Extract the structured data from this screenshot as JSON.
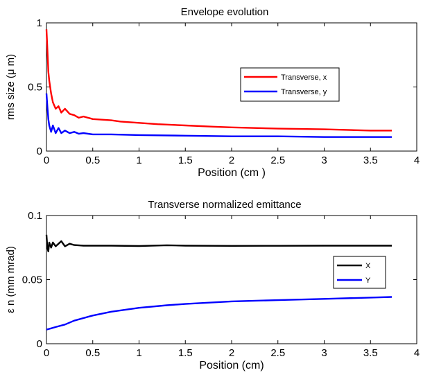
{
  "chart_data": [
    {
      "type": "line",
      "title": "Envelope evolution",
      "xlabel": "Position (cm )",
      "ylabel": "rms size (μ m)",
      "xlim": [
        0,
        4
      ],
      "ylim": [
        0,
        1
      ],
      "xticks": [
        "0",
        "0.5",
        "1",
        "1.5",
        "2",
        "2.5",
        "3",
        "3.5",
        "4"
      ],
      "yticks": [
        "0",
        "0.5",
        "1"
      ],
      "grid": false,
      "legend_position": "center-right",
      "series": [
        {
          "name": "Transverse, x",
          "color": "#ff0000",
          "x": [
            0,
            0.01,
            0.02,
            0.03,
            0.05,
            0.07,
            0.1,
            0.13,
            0.16,
            0.2,
            0.25,
            0.3,
            0.35,
            0.4,
            0.5,
            0.6,
            0.7,
            0.8,
            1.0,
            1.2,
            1.5,
            1.8,
            2.0,
            2.5,
            3.0,
            3.5,
            3.73
          ],
          "y": [
            0.95,
            0.8,
            0.62,
            0.55,
            0.45,
            0.38,
            0.33,
            0.35,
            0.3,
            0.33,
            0.29,
            0.28,
            0.26,
            0.27,
            0.25,
            0.245,
            0.24,
            0.23,
            0.22,
            0.21,
            0.2,
            0.19,
            0.185,
            0.175,
            0.17,
            0.16,
            0.16
          ]
        },
        {
          "name": "Transverse, y",
          "color": "#0000ff",
          "x": [
            0,
            0.01,
            0.02,
            0.03,
            0.05,
            0.07,
            0.1,
            0.13,
            0.16,
            0.2,
            0.25,
            0.3,
            0.35,
            0.4,
            0.5,
            0.7,
            1.0,
            1.5,
            2.0,
            2.5,
            3.0,
            3.5,
            3.73
          ],
          "y": [
            0.45,
            0.35,
            0.25,
            0.2,
            0.15,
            0.2,
            0.14,
            0.18,
            0.14,
            0.16,
            0.14,
            0.15,
            0.135,
            0.14,
            0.13,
            0.13,
            0.125,
            0.12,
            0.115,
            0.115,
            0.11,
            0.11,
            0.11
          ]
        }
      ]
    },
    {
      "type": "line",
      "title": "Transverse normalized emittance",
      "xlabel": "Position (cm)",
      "ylabel": "ε n (mm mrad)",
      "xlim": [
        0,
        4
      ],
      "ylim": [
        0,
        0.1
      ],
      "xticks": [
        "0",
        "0.5",
        "1",
        "1.5",
        "2",
        "2.5",
        "3",
        "3.5",
        "4"
      ],
      "yticks": [
        "0",
        "0.05",
        "0.1"
      ],
      "grid": false,
      "legend_position": "center-right",
      "series": [
        {
          "name": "X",
          "color": "#000000",
          "x": [
            0,
            0.01,
            0.02,
            0.03,
            0.05,
            0.07,
            0.1,
            0.13,
            0.16,
            0.2,
            0.25,
            0.3,
            0.4,
            0.5,
            0.7,
            1.0,
            1.3,
            1.5,
            2.0,
            2.5,
            3.0,
            3.5,
            3.73
          ],
          "y": [
            0.085,
            0.075,
            0.072,
            0.079,
            0.075,
            0.079,
            0.076,
            0.078,
            0.08,
            0.076,
            0.078,
            0.077,
            0.0765,
            0.0765,
            0.0765,
            0.0762,
            0.0768,
            0.0765,
            0.0763,
            0.0764,
            0.0765,
            0.0765,
            0.0765
          ]
        },
        {
          "name": "Y",
          "color": "#0000ff",
          "x": [
            0,
            0.05,
            0.1,
            0.2,
            0.3,
            0.5,
            0.7,
            1.0,
            1.3,
            1.5,
            2.0,
            2.5,
            3.0,
            3.5,
            3.73
          ],
          "y": [
            0.011,
            0.012,
            0.013,
            0.015,
            0.018,
            0.022,
            0.025,
            0.028,
            0.03,
            0.031,
            0.033,
            0.034,
            0.035,
            0.036,
            0.0365
          ]
        }
      ]
    }
  ]
}
